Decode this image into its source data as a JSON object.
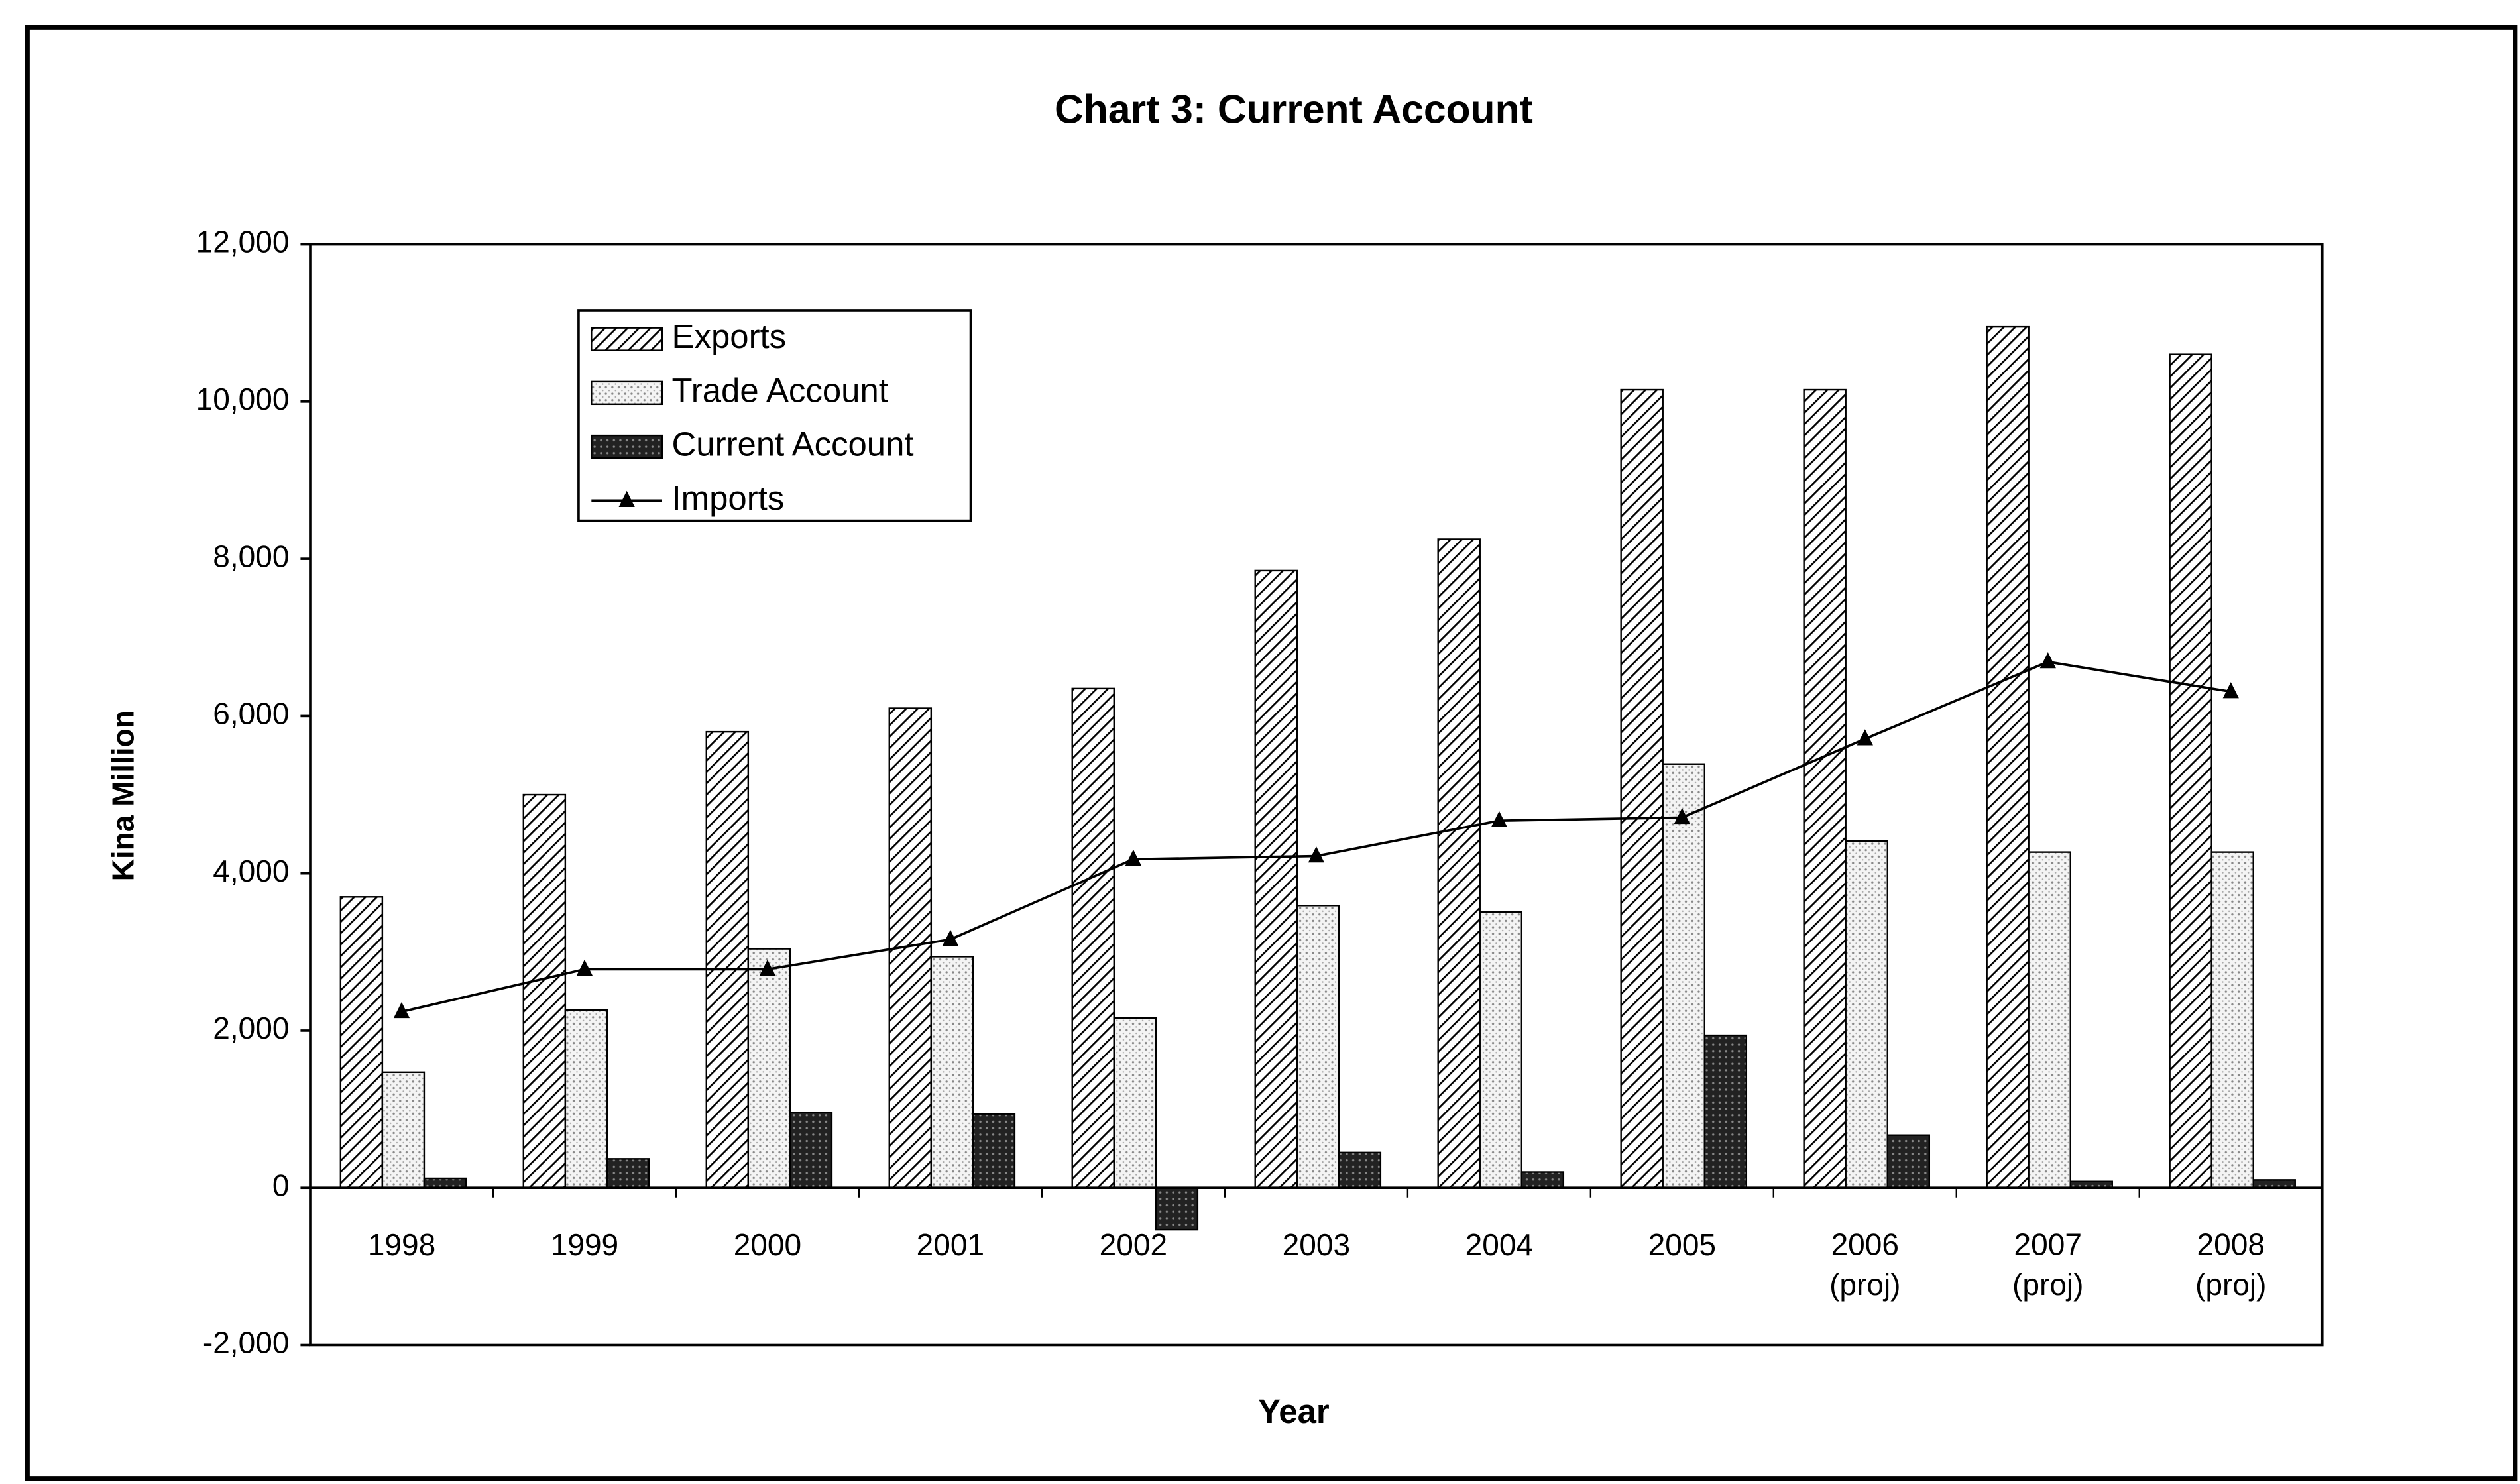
{
  "chart_data": {
    "type": "bar",
    "title": "Chart 3: Current Account",
    "x_label": "Year",
    "y_label": "Kina Million",
    "categories": [
      "1998",
      "1999",
      "2000",
      "2001",
      "2002",
      "2003",
      "2004",
      "2005",
      "2006 (proj)",
      "2007 (proj)",
      "2008 (proj)"
    ],
    "series": [
      {
        "name": "Exports",
        "type": "bar",
        "color": "#000000",
        "pattern": "hatch",
        "values": [
          3700,
          5000,
          5800,
          6100,
          6350,
          7850,
          8250,
          10150,
          10150,
          10950,
          10600
        ]
      },
      {
        "name": "Trade Account",
        "type": "bar",
        "color": "#bdbdbd",
        "pattern": "dots",
        "values": [
          1470,
          2260,
          3040,
          2940,
          2160,
          3590,
          3510,
          5390,
          4410,
          4270,
          4270
        ]
      },
      {
        "name": "Current Account",
        "type": "bar",
        "color": "#222222",
        "pattern": "dense",
        "values": [
          120,
          370,
          960,
          940,
          -530,
          450,
          200,
          1940,
          670,
          80,
          100
        ]
      },
      {
        "name": "Imports",
        "type": "line",
        "color": "#000000",
        "values": [
          2240,
          2780,
          2780,
          3160,
          4180,
          4220,
          4670,
          4710,
          5710,
          6690,
          6310
        ]
      }
    ],
    "ylim": [
      -2000,
      12000
    ],
    "yticks": [
      {
        "value": -2000,
        "label": "-2,000"
      },
      0,
      {
        "value": 2000,
        "label": "2,000"
      },
      {
        "value": 4000,
        "label": "4,000"
      },
      {
        "value": 6000,
        "label": "6,000"
      },
      {
        "value": 8000,
        "label": "8,000"
      },
      {
        "value": 10000,
        "label": "10,000"
      },
      {
        "value": 12000,
        "label": "12,000"
      }
    ],
    "grid": false,
    "legend": "top-left"
  }
}
